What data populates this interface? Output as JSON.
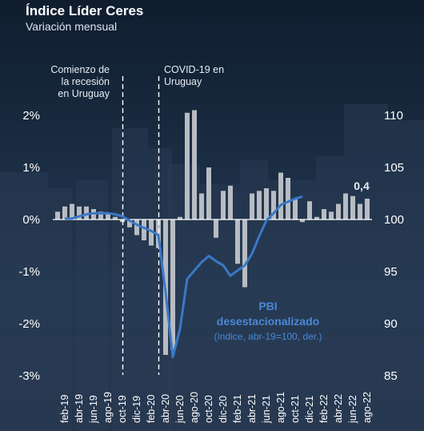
{
  "header": {
    "title": "Índice Líder Ceres",
    "subtitle": "Variación mensual"
  },
  "annotations": {
    "recession_line1": "Comienzo de",
    "recession_line2": "la recesión",
    "recession_line3": "en Uruguay",
    "covid_line1": "COVID-19 en",
    "covid_line2": "Uruguay",
    "last_value": "0,4",
    "pbi_line1": "PBI",
    "pbi_line2": "desestacionalizado",
    "pbi_line3": "(índice, abr-19=100, der.)"
  },
  "colors": {
    "bars": "#b8bcc2",
    "line": "#3b78c7",
    "pbi_text": "#4a88d6",
    "axis": "#ffffff"
  },
  "chart_data": {
    "type": "bar",
    "title": "Índice Líder Ceres",
    "subtitle": "Variación mensual",
    "months": [
      "ene-19",
      "feb-19",
      "mar-19",
      "abr-19",
      "may-19",
      "jun-19",
      "jul-19",
      "ago-19",
      "sep-19",
      "oct-19",
      "nov-19",
      "dic-19",
      "ene-20",
      "feb-20",
      "mar-20",
      "abr-20",
      "may-20",
      "jun-20",
      "jul-20",
      "ago-20",
      "sep-20",
      "oct-20",
      "nov-20",
      "dic-20",
      "ene-21",
      "feb-21",
      "mar-21",
      "abr-21",
      "may-21",
      "jun-21",
      "jul-21",
      "ago-21",
      "sep-21",
      "oct-21",
      "nov-21",
      "dic-21",
      "ene-22",
      "feb-22",
      "mar-22",
      "abr-22",
      "may-22",
      "jun-22",
      "jul-22",
      "ago-22"
    ],
    "x_tick_labels": [
      "feb-19",
      "abr-19",
      "jun-19",
      "ago-19",
      "oct-19",
      "dic-19",
      "feb-20",
      "abr-20",
      "jun-20",
      "ago-20",
      "oct-20",
      "dic-20",
      "feb-21",
      "abr-21",
      "jun-21",
      "ago-21",
      "oct-21",
      "dic-21",
      "feb-22",
      "abr-22",
      "jun-22",
      "ago-22"
    ],
    "series": [
      {
        "axis": "left",
        "type": "bar",
        "values": [
          0.15,
          0.25,
          0.3,
          0.25,
          0.25,
          0.2,
          0.15,
          0.1,
          0.05,
          -0.05,
          -0.15,
          -0.3,
          -0.4,
          -0.5,
          -0.55,
          -2.6,
          -2.5,
          0.05,
          2.05,
          2.1,
          0.5,
          1.0,
          -0.35,
          0.55,
          0.65,
          -0.85,
          -1.3,
          0.5,
          0.55,
          0.6,
          0.55,
          0.9,
          0.8,
          0.4,
          -0.05,
          0.35,
          0.05,
          0.2,
          0.15,
          0.3,
          0.5,
          0.45,
          0.3,
          0.4
        ]
      },
      {
        "name": "PBI desestacionalizado",
        "axis": "right",
        "type": "line",
        "x_start": "feb-19",
        "values": [
          100.1,
          100.1,
          100.3,
          100.5,
          100.6,
          100.6,
          100.6,
          100.5,
          100.3,
          99.9,
          99.5,
          99.2,
          98.9,
          98.5,
          93.0,
          86.8,
          89.5,
          94.3,
          95.1,
          95.9,
          96.5,
          96.0,
          95.6,
          94.6,
          95.1,
          95.6,
          96.7,
          98.4,
          99.9,
          100.6,
          101.4,
          101.7,
          102.0,
          102.2
        ]
      }
    ],
    "left_axis": {
      "ylim": [
        -3,
        2.5
      ],
      "ticks": [
        "2%",
        "1%",
        "0%",
        "-1%",
        "-2%",
        "-3%"
      ]
    },
    "right_axis": {
      "ylim": [
        85,
        110
      ],
      "ticks": [
        "110",
        "105",
        "100",
        "95",
        "90",
        "85"
      ]
    },
    "markers": [
      {
        "month": "oct-19",
        "label": "Comienzo de la recesión en Uruguay"
      },
      {
        "month": "mar-20",
        "label": "COVID-19 en Uruguay"
      }
    ]
  }
}
